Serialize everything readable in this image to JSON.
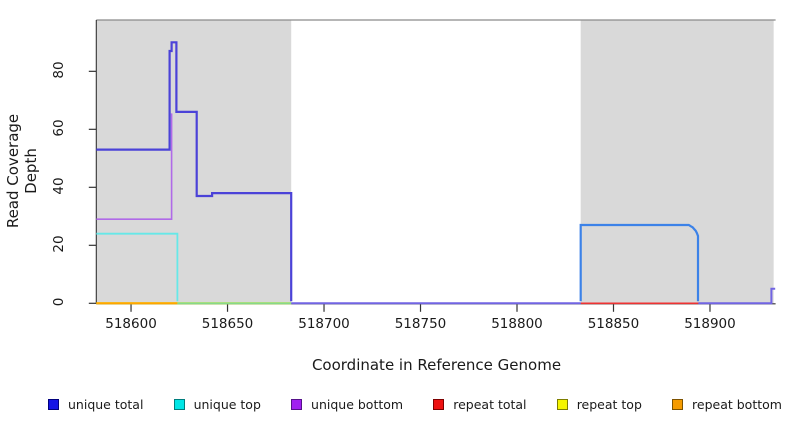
{
  "chart_data": {
    "type": "line",
    "title": "",
    "xlabel": "Coordinate in Reference Genome",
    "ylabel": "Read Coverage Depth",
    "xlim": [
      518582,
      518934
    ],
    "ylim": [
      0,
      97.7
    ],
    "x_ticks": [
      518600,
      518650,
      518700,
      518750,
      518800,
      518850,
      518900
    ],
    "y_ticks": [
      0,
      20,
      40,
      60,
      80
    ],
    "grid": false,
    "legend_position": "bottom",
    "axis_color": "#333333",
    "top_border_color": "#8a8a8a",
    "shaded_regions": [
      {
        "name": "repeat-region-left",
        "x0": 518582,
        "x1": 518683,
        "color": "#d9d9d9"
      },
      {
        "name": "repeat-region-right",
        "x0": 518833,
        "x1": 518933,
        "color": "#d9d9d9"
      }
    ],
    "series": [
      {
        "name": "unique total",
        "color": "#0000ff",
        "steps": [
          [
            518582,
            53
          ],
          [
            518620,
            87
          ],
          [
            518621,
            90
          ],
          [
            518624,
            66
          ],
          [
            518634,
            37
          ],
          [
            518642,
            38
          ],
          [
            518683,
            0
          ],
          [
            518833,
            27
          ],
          [
            518890,
            26
          ],
          [
            518892,
            25
          ],
          [
            518894,
            0
          ]
        ]
      },
      {
        "name": "unique top",
        "color": "#00ffff",
        "steps": [
          [
            518582,
            24
          ],
          [
            518624,
            0
          ],
          [
            518833,
            27
          ],
          [
            518894,
            0
          ]
        ]
      },
      {
        "name": "unique bottom",
        "color": "#a020f0",
        "steps": [
          [
            518582,
            29
          ],
          [
            518621,
            66
          ],
          [
            518634,
            37
          ],
          [
            518642,
            38
          ],
          [
            518683,
            0
          ],
          [
            518932,
            5
          ]
        ]
      },
      {
        "name": "repeat total",
        "color": "#ff0000",
        "steps": [
          [
            518582,
            0
          ]
        ]
      },
      {
        "name": "repeat top",
        "color": "#ffff00",
        "steps": [
          [
            518582,
            0
          ]
        ]
      },
      {
        "name": "repeat bottom",
        "color": "#ffa500",
        "steps": [
          [
            518582,
            0
          ]
        ]
      }
    ],
    "plot_lines": [
      {
        "name": "repeat-top-baseline",
        "color": "#f5f500",
        "width": 2,
        "points": [
          [
            518582,
            0
          ],
          [
            518683,
            0
          ]
        ]
      },
      {
        "name": "repeat-bottom-baseline",
        "color": "#ffa500",
        "width": 2,
        "points": [
          [
            518582,
            0
          ],
          [
            518624,
            0
          ]
        ]
      },
      {
        "name": "unique-top-repeat-top-overlap",
        "color": "#86d98a",
        "width": 1.8,
        "points": [
          [
            518624,
            0
          ],
          [
            518683,
            0
          ]
        ]
      },
      {
        "name": "repeat-total-baseline-right",
        "color": "#ee3333",
        "width": 1.6,
        "points": [
          [
            518833,
            0
          ],
          [
            518894,
            0
          ]
        ]
      },
      {
        "name": "unique-bottom-baseline-mid",
        "color": "#7164e3",
        "width": 2,
        "points": [
          [
            518683,
            0
          ],
          [
            518833,
            0
          ]
        ]
      },
      {
        "name": "unique-bottom-right-spike",
        "color": "#7164e3",
        "width": 2,
        "points": [
          [
            518894,
            0
          ],
          [
            518931.8,
            0
          ],
          [
            518931.8,
            5
          ],
          [
            518933.8,
            5
          ]
        ]
      },
      {
        "name": "unique-top-left",
        "color": "#66e8e8",
        "width": 1.8,
        "points": [
          [
            518582,
            24
          ],
          [
            518624,
            24
          ],
          [
            518624,
            0.7
          ]
        ]
      },
      {
        "name": "unique-bottom-left",
        "color": "#b06ae8",
        "width": 1.6,
        "points": [
          [
            518582,
            29
          ],
          [
            518621,
            29
          ],
          [
            518621,
            65.5
          ]
        ]
      },
      {
        "name": "unique-total-left",
        "color": "#4b42d8",
        "width": 2.2,
        "points": [
          [
            518582,
            53
          ],
          [
            518620,
            53
          ],
          [
            518620,
            87
          ],
          [
            518621,
            87
          ],
          [
            518621,
            90
          ],
          [
            518623.5,
            90
          ],
          [
            518623.5,
            66
          ],
          [
            518634,
            66
          ],
          [
            518634,
            37
          ],
          [
            518642,
            37
          ],
          [
            518642,
            38
          ],
          [
            518683,
            38
          ],
          [
            518683,
            0.7
          ]
        ]
      },
      {
        "name": "unique-total-right",
        "color": "#3c82e8",
        "width": 2.2,
        "points": [
          [
            518833,
            0.7
          ],
          [
            518833,
            27
          ],
          [
            518889,
            27
          ],
          [
            518890,
            26.6
          ],
          [
            518891,
            26.2
          ],
          [
            518891.8,
            25.6
          ],
          [
            518892.6,
            25
          ],
          [
            518893.2,
            24.2
          ],
          [
            518893.8,
            23.2
          ],
          [
            518893.8,
            0.7
          ]
        ]
      }
    ],
    "legend": [
      {
        "label": "unique total",
        "fill": "#1414e6",
        "border": "#00007d"
      },
      {
        "label": "unique top",
        "fill": "#00e6e6",
        "border": "#007d7d"
      },
      {
        "label": "unique bottom",
        "fill": "#a020f0",
        "border": "#55118a"
      },
      {
        "label": "repeat total",
        "fill": "#ee1111",
        "border": "#7d0000"
      },
      {
        "label": "repeat top",
        "fill": "#f5f500",
        "border": "#7d7d00"
      },
      {
        "label": "repeat bottom",
        "fill": "#f59b00",
        "border": "#7d5200"
      }
    ]
  }
}
